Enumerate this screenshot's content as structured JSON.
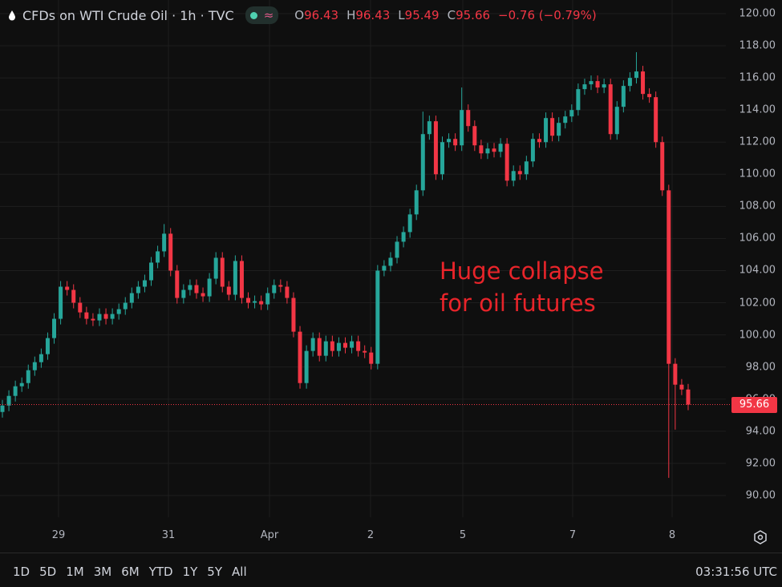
{
  "header": {
    "symbol": "CFDs on WTI Crude Oil · 1h · TVC",
    "open_label": "O",
    "open": "96.43",
    "high_label": "H",
    "high": "96.43",
    "low_label": "L",
    "low": "95.49",
    "close_label": "C",
    "close": "95.66",
    "change": "−0.76 (−0.79%)"
  },
  "price_axis": {
    "ticks": [
      "120.00",
      "118.00",
      "116.00",
      "114.00",
      "112.00",
      "110.00",
      "108.00",
      "106.00",
      "104.00",
      "102.00",
      "100.00",
      "98.00",
      "96.00",
      "94.00",
      "92.00",
      "90.00"
    ],
    "current": "95.66"
  },
  "time_axis": [
    "29",
    "31",
    "Apr",
    "2",
    "5",
    "7",
    "8"
  ],
  "ranges": [
    "1D",
    "5D",
    "1M",
    "3M",
    "6M",
    "YTD",
    "1Y",
    "5Y",
    "All"
  ],
  "clock": "03:31:56 UTC",
  "annotation": {
    "line1": "Huge collapse",
    "line2": "for oil futures"
  },
  "colors": {
    "up": "#26a69a",
    "down": "#f23645",
    "bg": "#0f0f0f",
    "grid": "#1e1e1e"
  },
  "chart_data": {
    "type": "candlestick",
    "title": "CFDs on WTI Crude Oil · 1h · TVC",
    "ylim": [
      89,
      121
    ],
    "first_open": 95.2,
    "closes": [
      95.6,
      96.2,
      96.8,
      97.0,
      97.8,
      98.3,
      98.8,
      99.8,
      101.0,
      103.0,
      102.8,
      102.0,
      101.4,
      101.0,
      100.9,
      101.3,
      101.0,
      101.3,
      101.6,
      102.0,
      102.6,
      103.0,
      103.4,
      104.5,
      105.2,
      106.3,
      104.0,
      102.3,
      102.8,
      103.1,
      102.6,
      102.4,
      103.5,
      104.8,
      103.0,
      102.5,
      104.6,
      102.3,
      102.0,
      102.1,
      101.9,
      102.6,
      103.1,
      103.0,
      102.3,
      100.2,
      97.0,
      99.0,
      99.8,
      98.7,
      99.6,
      99.0,
      99.5,
      99.2,
      99.6,
      99.0,
      98.9,
      98.2,
      104.0,
      104.3,
      104.8,
      105.8,
      106.4,
      107.5,
      109.0,
      112.5,
      113.3,
      110.0,
      112.0,
      112.2,
      111.8,
      114.0,
      113.0,
      111.8,
      111.3,
      111.6,
      111.4,
      111.9,
      109.6,
      110.2,
      110.0,
      110.8,
      112.2,
      112.0,
      113.5,
      112.4,
      113.2,
      113.6,
      114.0,
      115.3,
      115.6,
      115.8,
      115.4,
      115.6,
      112.5,
      114.2,
      115.5,
      116.0,
      116.4,
      115.0,
      114.8,
      112.0,
      109.0,
      98.2,
      96.9,
      96.6,
      95.66
    ],
    "spikes": [
      {
        "index": 103,
        "low": 91.1
      },
      {
        "index": 98,
        "high": 117.6
      },
      {
        "index": 104,
        "low": 94.1
      },
      {
        "index": 25,
        "high": 106.9
      },
      {
        "index": 65,
        "high": 113.9
      },
      {
        "index": 71,
        "high": 115.4
      }
    ],
    "current_price": 95.66
  }
}
